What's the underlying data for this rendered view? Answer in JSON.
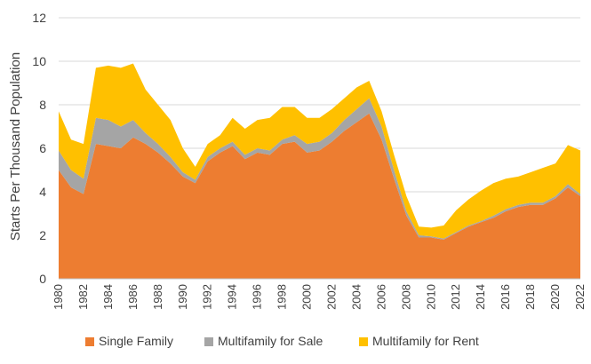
{
  "chart_data": {
    "type": "area",
    "stacked": true,
    "title": "",
    "xlabel": "",
    "ylabel": "Starts Per Thousand Population",
    "ylim": [
      0,
      12
    ],
    "yticks": [
      0,
      2,
      4,
      6,
      8,
      10,
      12
    ],
    "xlim": [
      1980,
      2022
    ],
    "xticks": [
      1980,
      1982,
      1984,
      1986,
      1988,
      1990,
      1992,
      1994,
      1996,
      1998,
      2000,
      2002,
      2004,
      2006,
      2008,
      2010,
      2012,
      2014,
      2016,
      2018,
      2020,
      2022
    ],
    "grid": "horizontal",
    "legend_position": "bottom",
    "x": [
      1980,
      1981,
      1982,
      1983,
      1984,
      1985,
      1986,
      1987,
      1988,
      1989,
      1990,
      1991,
      1992,
      1993,
      1994,
      1995,
      1996,
      1997,
      1998,
      1999,
      2000,
      2001,
      2002,
      2003,
      2004,
      2005,
      2006,
      2007,
      2008,
      2009,
      2010,
      2011,
      2012,
      2013,
      2014,
      2015,
      2016,
      2017,
      2018,
      2019,
      2020,
      2021,
      2022
    ],
    "series": [
      {
        "name": "Single Family",
        "color": "#ED7D31",
        "values": [
          5.0,
          4.2,
          3.9,
          6.2,
          6.1,
          6.0,
          6.5,
          6.2,
          5.8,
          5.3,
          4.7,
          4.4,
          5.4,
          5.8,
          6.1,
          5.5,
          5.8,
          5.7,
          6.2,
          6.3,
          5.8,
          5.9,
          6.3,
          6.8,
          7.2,
          7.6,
          6.4,
          4.6,
          2.9,
          1.9,
          1.9,
          1.8,
          2.1,
          2.4,
          2.6,
          2.8,
          3.1,
          3.3,
          3.4,
          3.4,
          3.7,
          4.2,
          3.8
        ]
      },
      {
        "name": "Multifamily for Sale",
        "color": "#A5A5A5",
        "values": [
          0.9,
          0.8,
          0.7,
          1.2,
          1.2,
          1.0,
          0.8,
          0.5,
          0.4,
          0.3,
          0.2,
          0.15,
          0.2,
          0.2,
          0.2,
          0.2,
          0.2,
          0.2,
          0.2,
          0.3,
          0.4,
          0.4,
          0.4,
          0.5,
          0.6,
          0.7,
          0.6,
          0.4,
          0.2,
          0.1,
          0.05,
          0.05,
          0.05,
          0.05,
          0.05,
          0.1,
          0.1,
          0.1,
          0.1,
          0.1,
          0.1,
          0.15,
          0.1
        ]
      },
      {
        "name": "Multifamily for Rent",
        "color": "#FFC000",
        "values": [
          1.8,
          1.4,
          1.6,
          2.3,
          2.5,
          2.7,
          2.6,
          2.0,
          1.8,
          1.7,
          1.1,
          0.6,
          0.6,
          0.6,
          1.1,
          1.2,
          1.3,
          1.5,
          1.5,
          1.3,
          1.2,
          1.1,
          1.1,
          1.0,
          1.0,
          0.8,
          0.7,
          0.7,
          0.7,
          0.4,
          0.4,
          0.6,
          1.0,
          1.2,
          1.4,
          1.5,
          1.4,
          1.3,
          1.4,
          1.6,
          1.5,
          1.8,
          2.0
        ]
      }
    ]
  }
}
